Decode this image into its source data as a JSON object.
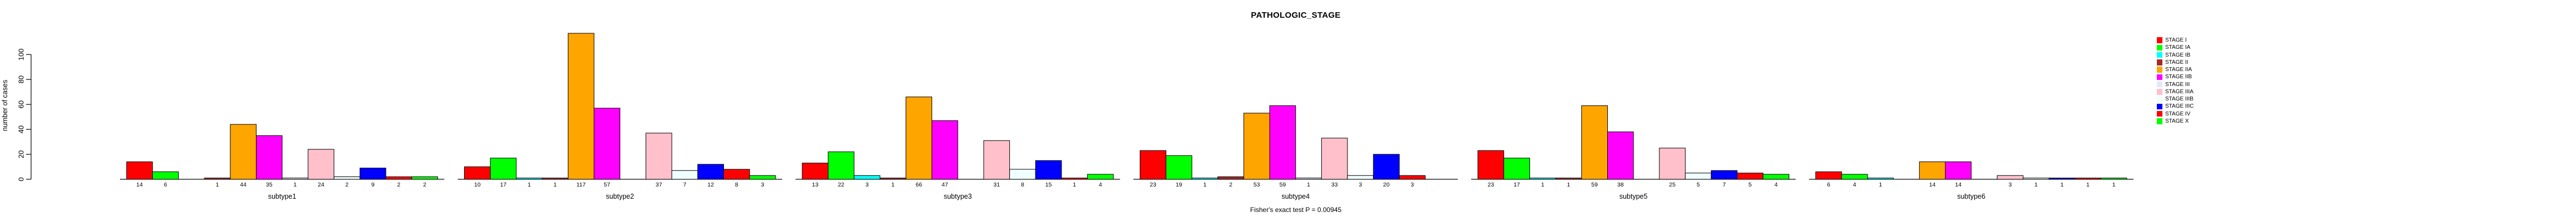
{
  "chart": {
    "title": "PATHOLOGIC_STAGE",
    "footnote": "Fisher's exact test P = 0.00945"
  },
  "chart_data": {
    "type": "bar",
    "title": "PATHOLOGIC_STAGE",
    "ylabel": "number of cases",
    "xlabel": "",
    "ylim": [
      0,
      100
    ],
    "yticks": [
      0,
      20,
      40,
      60,
      80,
      100
    ],
    "grid": false,
    "legend_position": "right-top",
    "annotation": "Fisher's exact test P = 0.00945",
    "categories": [
      "subtype1",
      "subtype2",
      "subtype3",
      "subtype4",
      "subtype5",
      "subtype6"
    ],
    "series": [
      {
        "name": "STAGE I",
        "color": "#FF0000",
        "values": [
          14,
          10,
          13,
          23,
          23,
          6
        ]
      },
      {
        "name": "STAGE IA",
        "color": "#00FF00",
        "values": [
          6,
          17,
          22,
          19,
          17,
          4
        ]
      },
      {
        "name": "STAGE IB",
        "color": "#00FFFF",
        "values": [
          0,
          1,
          3,
          1,
          1,
          1
        ]
      },
      {
        "name": "STAGE II",
        "color": "#A52A2A",
        "values": [
          1,
          1,
          1,
          2,
          1,
          0
        ]
      },
      {
        "name": "STAGE IIA",
        "color": "#FFA500",
        "values": [
          44,
          117,
          66,
          53,
          59,
          14
        ]
      },
      {
        "name": "STAGE IIB",
        "color": "#FF00FF",
        "values": [
          35,
          57,
          47,
          59,
          38,
          14
        ]
      },
      {
        "name": "STAGE III",
        "color": "#E6E6FA",
        "values": [
          1,
          0,
          0,
          1,
          0,
          0
        ]
      },
      {
        "name": "STAGE IIIA",
        "color": "#FFC0CB",
        "values": [
          24,
          37,
          31,
          33,
          25,
          3
        ]
      },
      {
        "name": "STAGE IIIB",
        "color": "#F0FFFF",
        "values": [
          2,
          7,
          8,
          3,
          5,
          1
        ]
      },
      {
        "name": "STAGE IIIC",
        "color": "#0000FF",
        "values": [
          9,
          12,
          15,
          20,
          7,
          1
        ]
      },
      {
        "name": "STAGE IV",
        "color": "#FF0000",
        "values": [
          2,
          8,
          1,
          3,
          5,
          1
        ]
      },
      {
        "name": "STAGE X",
        "color": "#00FF00",
        "values": [
          2,
          3,
          4,
          0,
          4,
          1
        ]
      }
    ]
  }
}
